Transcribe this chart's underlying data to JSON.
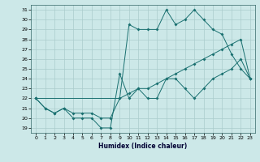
{
  "xlabel": "Humidex (Indice chaleur)",
  "bg_color": "#cce8e8",
  "line_color": "#1a7070",
  "grid_color": "#aacccc",
  "xlim": [
    -0.5,
    23.5
  ],
  "ylim": [
    18.5,
    31.5
  ],
  "xticks": [
    0,
    1,
    2,
    3,
    4,
    5,
    6,
    7,
    8,
    9,
    10,
    11,
    12,
    13,
    14,
    15,
    16,
    17,
    18,
    19,
    20,
    21,
    22,
    23
  ],
  "yticks": [
    19,
    20,
    21,
    22,
    23,
    24,
    25,
    26,
    27,
    28,
    29,
    30,
    31
  ],
  "line1_x": [
    0,
    1,
    2,
    3,
    4,
    5,
    6,
    7,
    8,
    9,
    10,
    11,
    12,
    13,
    14,
    15,
    16,
    17,
    18,
    19,
    20,
    21,
    22,
    23
  ],
  "line1_y": [
    22,
    21,
    20.5,
    21,
    20,
    20,
    20,
    19,
    19,
    24.5,
    22,
    23,
    22,
    22,
    24,
    24,
    23,
    22,
    23,
    24,
    24.5,
    25,
    26,
    24
  ],
  "line2_x": [
    0,
    1,
    2,
    3,
    4,
    5,
    6,
    7,
    8,
    9,
    10,
    11,
    12,
    13,
    14,
    15,
    16,
    17,
    18,
    19,
    20,
    21,
    22,
    23
  ],
  "line2_y": [
    22,
    21,
    20.5,
    21,
    20.5,
    20.5,
    20.5,
    20,
    20,
    22,
    22.5,
    23,
    23,
    23.5,
    24,
    24.5,
    25,
    25.5,
    26,
    26.5,
    27,
    27.5,
    28,
    24
  ],
  "line3_x": [
    0,
    9,
    10,
    11,
    12,
    13,
    14,
    15,
    16,
    17,
    18,
    19,
    20,
    21,
    22,
    23
  ],
  "line3_y": [
    22,
    22,
    29.5,
    29,
    29,
    29,
    31,
    29.5,
    30,
    31,
    30,
    29,
    28.5,
    26.5,
    25,
    24
  ]
}
